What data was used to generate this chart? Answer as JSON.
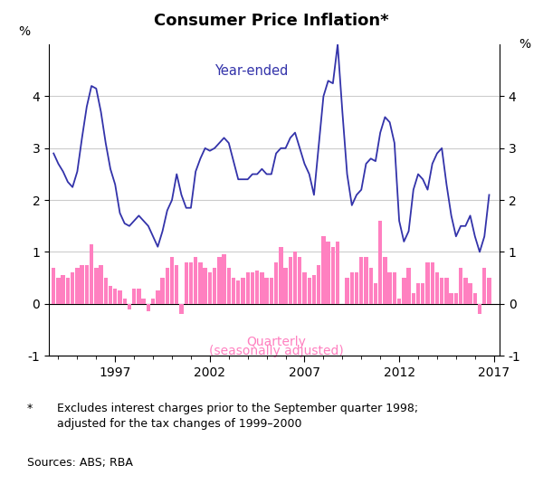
{
  "title": "Consumer Price Inflation*",
  "title_fontsize": 13,
  "ylabel_left": "%",
  "ylabel_right": "%",
  "ylim": [
    -1,
    5
  ],
  "yticks": [
    -1,
    0,
    1,
    2,
    3,
    4
  ],
  "xticks": [
    1997,
    2002,
    2007,
    2012,
    2017
  ],
  "xlim_start": 1993.5,
  "xlim_end": 2017.3,
  "line_color": "#3333AA",
  "bar_color": "#FF80C0",
  "label_line": "Year-ended",
  "label_bar_line1": "Quarterly",
  "label_bar_line2": "(seasonally adjusted)",
  "label_line_color": "#3333AA",
  "label_bar_color": "#FF80C0",
  "footnote_star": "*",
  "footnote_text": "Excludes interest charges prior to the September quarter 1998;\nadjusted for the tax changes of 1999–2000",
  "sources": "Sources: ABS; RBA",
  "year_ended": [
    [
      1993.75,
      2.9
    ],
    [
      1994.0,
      2.7
    ],
    [
      1994.25,
      2.55
    ],
    [
      1994.5,
      2.35
    ],
    [
      1994.75,
      2.25
    ],
    [
      1995.0,
      2.55
    ],
    [
      1995.25,
      3.2
    ],
    [
      1995.5,
      3.8
    ],
    [
      1995.75,
      4.2
    ],
    [
      1996.0,
      4.15
    ],
    [
      1996.25,
      3.7
    ],
    [
      1996.5,
      3.1
    ],
    [
      1996.75,
      2.6
    ],
    [
      1997.0,
      2.3
    ],
    [
      1997.25,
      1.75
    ],
    [
      1997.5,
      1.55
    ],
    [
      1997.75,
      1.5
    ],
    [
      1998.0,
      1.6
    ],
    [
      1998.25,
      1.7
    ],
    [
      1998.5,
      1.6
    ],
    [
      1998.75,
      1.5
    ],
    [
      1999.0,
      1.3
    ],
    [
      1999.25,
      1.1
    ],
    [
      1999.5,
      1.4
    ],
    [
      1999.75,
      1.8
    ],
    [
      2000.0,
      2.0
    ],
    [
      2000.25,
      2.5
    ],
    [
      2000.5,
      2.1
    ],
    [
      2000.75,
      1.85
    ],
    [
      2001.0,
      1.85
    ],
    [
      2001.25,
      2.55
    ],
    [
      2001.5,
      2.8
    ],
    [
      2001.75,
      3.0
    ],
    [
      2002.0,
      2.95
    ],
    [
      2002.25,
      3.0
    ],
    [
      2002.5,
      3.1
    ],
    [
      2002.75,
      3.2
    ],
    [
      2003.0,
      3.1
    ],
    [
      2003.25,
      2.75
    ],
    [
      2003.5,
      2.4
    ],
    [
      2003.75,
      2.4
    ],
    [
      2004.0,
      2.4
    ],
    [
      2004.25,
      2.5
    ],
    [
      2004.5,
      2.5
    ],
    [
      2004.75,
      2.6
    ],
    [
      2005.0,
      2.5
    ],
    [
      2005.25,
      2.5
    ],
    [
      2005.5,
      2.9
    ],
    [
      2005.75,
      3.0
    ],
    [
      2006.0,
      3.0
    ],
    [
      2006.25,
      3.2
    ],
    [
      2006.5,
      3.3
    ],
    [
      2006.75,
      3.0
    ],
    [
      2007.0,
      2.7
    ],
    [
      2007.25,
      2.5
    ],
    [
      2007.5,
      2.1
    ],
    [
      2007.75,
      3.05
    ],
    [
      2008.0,
      4.0
    ],
    [
      2008.25,
      4.3
    ],
    [
      2008.5,
      4.25
    ],
    [
      2008.75,
      5.0
    ],
    [
      2009.0,
      3.7
    ],
    [
      2009.25,
      2.5
    ],
    [
      2009.5,
      1.9
    ],
    [
      2009.75,
      2.1
    ],
    [
      2010.0,
      2.2
    ],
    [
      2010.25,
      2.7
    ],
    [
      2010.5,
      2.8
    ],
    [
      2010.75,
      2.75
    ],
    [
      2011.0,
      3.3
    ],
    [
      2011.25,
      3.6
    ],
    [
      2011.5,
      3.5
    ],
    [
      2011.75,
      3.1
    ],
    [
      2012.0,
      1.6
    ],
    [
      2012.25,
      1.2
    ],
    [
      2012.5,
      1.4
    ],
    [
      2012.75,
      2.2
    ],
    [
      2013.0,
      2.5
    ],
    [
      2013.25,
      2.4
    ],
    [
      2013.5,
      2.2
    ],
    [
      2013.75,
      2.7
    ],
    [
      2014.0,
      2.9
    ],
    [
      2014.25,
      3.0
    ],
    [
      2014.5,
      2.3
    ],
    [
      2014.75,
      1.7
    ],
    [
      2015.0,
      1.3
    ],
    [
      2015.25,
      1.5
    ],
    [
      2015.5,
      1.5
    ],
    [
      2015.75,
      1.7
    ],
    [
      2016.0,
      1.3
    ],
    [
      2016.25,
      1.0
    ],
    [
      2016.5,
      1.3
    ],
    [
      2016.75,
      2.1
    ]
  ],
  "quarterly": [
    [
      1993.75,
      0.7
    ],
    [
      1994.0,
      0.5
    ],
    [
      1994.25,
      0.55
    ],
    [
      1994.5,
      0.5
    ],
    [
      1994.75,
      0.6
    ],
    [
      1995.0,
      0.7
    ],
    [
      1995.25,
      0.75
    ],
    [
      1995.5,
      0.75
    ],
    [
      1995.75,
      1.15
    ],
    [
      1996.0,
      0.7
    ],
    [
      1996.25,
      0.75
    ],
    [
      1996.5,
      0.5
    ],
    [
      1996.75,
      0.35
    ],
    [
      1997.0,
      0.3
    ],
    [
      1997.25,
      0.25
    ],
    [
      1997.5,
      0.1
    ],
    [
      1997.75,
      -0.1
    ],
    [
      1998.0,
      0.3
    ],
    [
      1998.25,
      0.3
    ],
    [
      1998.5,
      0.1
    ],
    [
      1998.75,
      -0.15
    ],
    [
      1999.0,
      0.1
    ],
    [
      1999.25,
      0.25
    ],
    [
      1999.5,
      0.5
    ],
    [
      1999.75,
      0.7
    ],
    [
      2000.0,
      0.9
    ],
    [
      2000.25,
      0.75
    ],
    [
      2000.5,
      -0.2
    ],
    [
      2000.75,
      0.8
    ],
    [
      2001.0,
      0.8
    ],
    [
      2001.25,
      0.9
    ],
    [
      2001.5,
      0.8
    ],
    [
      2001.75,
      0.7
    ],
    [
      2002.0,
      0.6
    ],
    [
      2002.25,
      0.7
    ],
    [
      2002.5,
      0.9
    ],
    [
      2002.75,
      0.95
    ],
    [
      2003.0,
      0.7
    ],
    [
      2003.25,
      0.5
    ],
    [
      2003.5,
      0.45
    ],
    [
      2003.75,
      0.5
    ],
    [
      2004.0,
      0.6
    ],
    [
      2004.25,
      0.6
    ],
    [
      2004.5,
      0.65
    ],
    [
      2004.75,
      0.6
    ],
    [
      2005.0,
      0.5
    ],
    [
      2005.25,
      0.5
    ],
    [
      2005.5,
      0.8
    ],
    [
      2005.75,
      1.1
    ],
    [
      2006.0,
      0.7
    ],
    [
      2006.25,
      0.9
    ],
    [
      2006.5,
      1.0
    ],
    [
      2006.75,
      0.9
    ],
    [
      2007.0,
      0.6
    ],
    [
      2007.25,
      0.5
    ],
    [
      2007.5,
      0.55
    ],
    [
      2007.75,
      0.75
    ],
    [
      2008.0,
      1.3
    ],
    [
      2008.25,
      1.2
    ],
    [
      2008.5,
      1.1
    ],
    [
      2008.75,
      1.2
    ],
    [
      2009.0,
      0.0
    ],
    [
      2009.25,
      0.5
    ],
    [
      2009.5,
      0.6
    ],
    [
      2009.75,
      0.6
    ],
    [
      2010.0,
      0.9
    ],
    [
      2010.25,
      0.9
    ],
    [
      2010.5,
      0.7
    ],
    [
      2010.75,
      0.4
    ],
    [
      2011.0,
      1.6
    ],
    [
      2011.25,
      0.9
    ],
    [
      2011.5,
      0.6
    ],
    [
      2011.75,
      0.6
    ],
    [
      2012.0,
      0.1
    ],
    [
      2012.25,
      0.5
    ],
    [
      2012.5,
      0.7
    ],
    [
      2012.75,
      0.2
    ],
    [
      2013.0,
      0.4
    ],
    [
      2013.25,
      0.4
    ],
    [
      2013.5,
      0.8
    ],
    [
      2013.75,
      0.8
    ],
    [
      2014.0,
      0.6
    ],
    [
      2014.25,
      0.5
    ],
    [
      2014.5,
      0.5
    ],
    [
      2014.75,
      0.2
    ],
    [
      2015.0,
      0.2
    ],
    [
      2015.25,
      0.7
    ],
    [
      2015.5,
      0.5
    ],
    [
      2015.75,
      0.4
    ],
    [
      2016.0,
      0.2
    ],
    [
      2016.25,
      -0.2
    ],
    [
      2016.5,
      0.7
    ],
    [
      2016.75,
      0.5
    ]
  ]
}
